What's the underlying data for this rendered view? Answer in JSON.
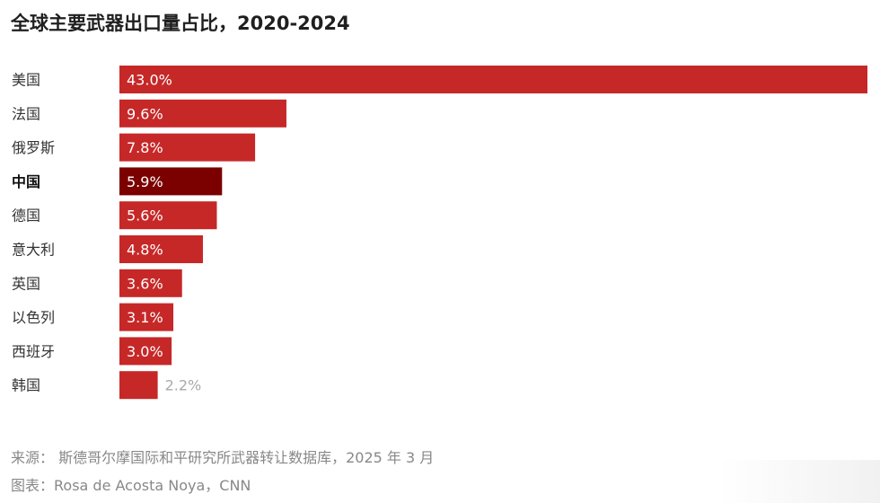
{
  "chart_data": {
    "type": "bar",
    "orientation": "horizontal",
    "title": "全球主要武器出口量占比，2020-2024",
    "categories": [
      "美国",
      "法国",
      "俄罗斯",
      "中国",
      "德国",
      "意大利",
      "英国",
      "以色列",
      "西班牙",
      "韩国"
    ],
    "values": [
      43.0,
      9.6,
      7.8,
      5.9,
      5.6,
      4.8,
      3.6,
      3.1,
      3.0,
      2.2
    ],
    "labels": [
      "43.0%",
      "9.6%",
      "7.8%",
      "5.9%",
      "5.6%",
      "4.8%",
      "3.6%",
      "3.1%",
      "3.0%",
      "2.2%"
    ],
    "highlight_category": "中国",
    "xlim": [
      0,
      43.0
    ],
    "grid": false,
    "colors": {
      "bar": "#c62828",
      "highlight": "#7b0000",
      "label_inside": "#ffffff",
      "label_outside": "#aaaaaa"
    }
  },
  "footer": {
    "source": "来源： 斯德哥尔摩国际和平研究所武器转让数据库，2025 年 3 月",
    "credit": "图表：Rosa de Acosta Noya，CNN"
  }
}
